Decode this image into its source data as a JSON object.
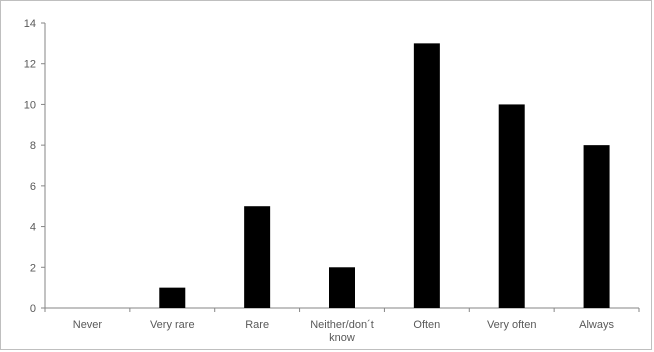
{
  "chart_data": {
    "type": "bar",
    "categories": [
      "Never",
      "Very rare",
      "Rare",
      "Neither/don´t know",
      "Often",
      "Very often",
      "Always"
    ],
    "category_lines": [
      [
        "Never"
      ],
      [
        "Very rare"
      ],
      [
        "Rare"
      ],
      [
        "Neither/don´t",
        "know"
      ],
      [
        "Often"
      ],
      [
        "Very often"
      ],
      [
        "Always"
      ]
    ],
    "values": [
      0,
      1,
      5,
      2,
      13,
      10,
      8
    ],
    "ylim": [
      0,
      14
    ],
    "yticks": [
      0,
      2,
      4,
      6,
      8,
      10,
      12,
      14
    ],
    "grid": false,
    "bar_color": "#000000",
    "axis_color": "#868686",
    "text_color": "#595959"
  }
}
